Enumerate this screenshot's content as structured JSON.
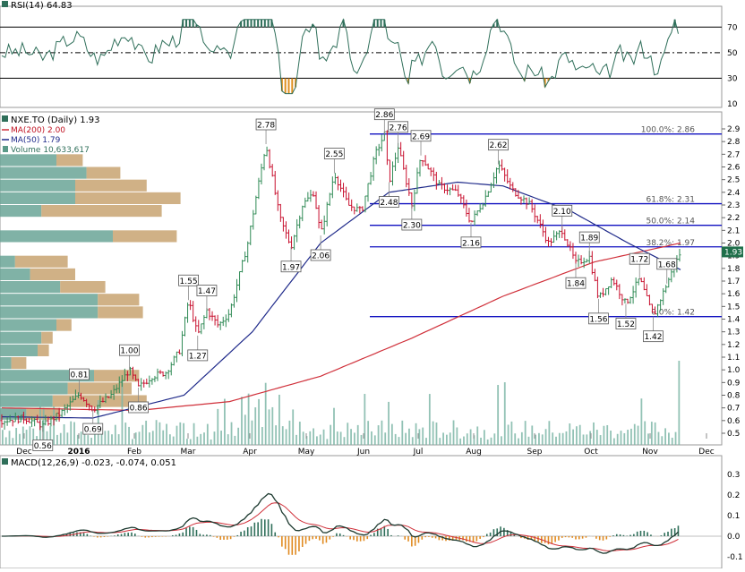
{
  "rsi_panel": {
    "legend": "RSI(14) 64.83",
    "ticks": [
      70,
      50,
      30,
      10
    ],
    "last_value": 64.83,
    "overbought": 70,
    "oversold": 30
  },
  "price_panel": {
    "legend_title": "NXE.TO (Daily) 1.93",
    "legend_ma200": "MA(200) 2.00",
    "legend_ma50": "MA(50) 1.79",
    "legend_volume": "Volume 10,633,617",
    "y_ticks": [
      "2.9",
      "2.8",
      "2.7",
      "2.6",
      "2.5",
      "2.4",
      "2.3",
      "2.2",
      "2.1",
      "2.0",
      "1.9",
      "1.8",
      "1.7",
      "1.6",
      "1.5",
      "1.4",
      "1.3",
      "1.2",
      "1.1",
      "1.0",
      "0.9",
      "0.8",
      "0.7",
      "0.6",
      "0.5"
    ],
    "x_ticks": [
      "Dec",
      "2016",
      "Feb",
      "Mar",
      "Apr",
      "May",
      "Jun",
      "Jul",
      "Aug",
      "Sep",
      "Oct",
      "Nov",
      "Dec"
    ],
    "fib_labels": [
      "100.0%: 2.86",
      "61.8%: 2.31",
      "50.0%: 2.14",
      "38.2%: 1.97",
      "0.0%: 1.42"
    ],
    "fib_levels": [
      2.86,
      2.31,
      2.14,
      1.97,
      1.42
    ],
    "colors": {
      "up": "#2f8a55",
      "down": "#c8102e",
      "ma200": "#d0303a",
      "ma50": "#1f2a8a",
      "fib": "#1010c0",
      "vp_up": "#6aa596",
      "vp_down": "#c8a371",
      "volume": "#7fb7a8"
    }
  },
  "macd_panel": {
    "legend": "MACD(12,26,9) -0.023, -0.074, 0.051",
    "ticks": [
      "0.3",
      "0.2",
      "0.1",
      "0.0",
      "-0.1"
    ]
  },
  "chart_data": {
    "type": "line",
    "title": "NXE.TO (Daily)",
    "last_close": 1.93,
    "ma200_last": 2.0,
    "ma50_last": 1.79,
    "volume_last": 10633617,
    "ylim": [
      0.45,
      2.95
    ],
    "price_path": [
      {
        "t": 0,
        "v": 0.6
      },
      {
        "t": 10,
        "v": 0.62
      },
      {
        "t": 18,
        "v": 0.56
      },
      {
        "t": 26,
        "v": 0.66
      },
      {
        "t": 34,
        "v": 0.81
      },
      {
        "t": 40,
        "v": 0.69
      },
      {
        "t": 48,
        "v": 0.8
      },
      {
        "t": 56,
        "v": 1.0
      },
      {
        "t": 60,
        "v": 0.86
      },
      {
        "t": 66,
        "v": 0.95
      },
      {
        "t": 72,
        "v": 0.98
      },
      {
        "t": 78,
        "v": 1.15
      },
      {
        "t": 82,
        "v": 1.55
      },
      {
        "t": 86,
        "v": 1.27
      },
      {
        "t": 90,
        "v": 1.47
      },
      {
        "t": 95,
        "v": 1.35
      },
      {
        "t": 100,
        "v": 1.45
      },
      {
        "t": 108,
        "v": 2.0
      },
      {
        "t": 112,
        "v": 2.4
      },
      {
        "t": 116,
        "v": 2.78
      },
      {
        "t": 122,
        "v": 2.2
      },
      {
        "t": 127,
        "v": 1.97
      },
      {
        "t": 132,
        "v": 2.3
      },
      {
        "t": 137,
        "v": 2.4
      },
      {
        "t": 140,
        "v": 2.06
      },
      {
        "t": 146,
        "v": 2.55
      },
      {
        "t": 152,
        "v": 2.3
      },
      {
        "t": 158,
        "v": 2.25
      },
      {
        "t": 164,
        "v": 2.7
      },
      {
        "t": 168,
        "v": 2.86
      },
      {
        "t": 170,
        "v": 2.48
      },
      {
        "t": 174,
        "v": 2.76
      },
      {
        "t": 180,
        "v": 2.3
      },
      {
        "t": 184,
        "v": 2.69
      },
      {
        "t": 192,
        "v": 2.45
      },
      {
        "t": 200,
        "v": 2.4
      },
      {
        "t": 206,
        "v": 2.16
      },
      {
        "t": 212,
        "v": 2.35
      },
      {
        "t": 218,
        "v": 2.62
      },
      {
        "t": 224,
        "v": 2.42
      },
      {
        "t": 232,
        "v": 2.3
      },
      {
        "t": 240,
        "v": 2.0
      },
      {
        "t": 246,
        "v": 2.1
      },
      {
        "t": 252,
        "v": 1.84
      },
      {
        "t": 258,
        "v": 1.89
      },
      {
        "t": 262,
        "v": 1.56
      },
      {
        "t": 268,
        "v": 1.72
      },
      {
        "t": 274,
        "v": 1.52
      },
      {
        "t": 280,
        "v": 1.72
      },
      {
        "t": 286,
        "v": 1.42
      },
      {
        "t": 292,
        "v": 1.68
      },
      {
        "t": 298,
        "v": 1.93
      }
    ],
    "ma200": [
      {
        "t": 0,
        "v": 0.7
      },
      {
        "t": 60,
        "v": 0.68
      },
      {
        "t": 100,
        "v": 0.75
      },
      {
        "t": 140,
        "v": 0.95
      },
      {
        "t": 180,
        "v": 1.25
      },
      {
        "t": 220,
        "v": 1.58
      },
      {
        "t": 260,
        "v": 1.85
      },
      {
        "t": 298,
        "v": 2.0
      }
    ],
    "ma50": [
      {
        "t": 0,
        "v": 0.63
      },
      {
        "t": 40,
        "v": 0.62
      },
      {
        "t": 80,
        "v": 0.8
      },
      {
        "t": 110,
        "v": 1.3
      },
      {
        "t": 140,
        "v": 2.0
      },
      {
        "t": 170,
        "v": 2.4
      },
      {
        "t": 200,
        "v": 2.48
      },
      {
        "t": 220,
        "v": 2.45
      },
      {
        "t": 250,
        "v": 2.25
      },
      {
        "t": 275,
        "v": 2.0
      },
      {
        "t": 298,
        "v": 1.79
      }
    ],
    "annotations": [
      {
        "text": "0.56",
        "t": 18,
        "v": 0.56,
        "pos": "below"
      },
      {
        "text": "0.81",
        "t": 34,
        "v": 0.81,
        "pos": "above"
      },
      {
        "text": "0.69",
        "t": 40,
        "v": 0.69,
        "pos": "below"
      },
      {
        "text": "1.00",
        "t": 56,
        "v": 1.0,
        "pos": "above"
      },
      {
        "text": "0.86",
        "t": 60,
        "v": 0.86,
        "pos": "below"
      },
      {
        "text": "1.55",
        "t": 82,
        "v": 1.55,
        "pos": "above"
      },
      {
        "text": "1.27",
        "t": 86,
        "v": 1.27,
        "pos": "below"
      },
      {
        "text": "1.47",
        "t": 90,
        "v": 1.47,
        "pos": "above"
      },
      {
        "text": "2.78",
        "t": 116,
        "v": 2.78,
        "pos": "above"
      },
      {
        "text": "1.97",
        "t": 127,
        "v": 1.97,
        "pos": "below"
      },
      {
        "text": "2.06",
        "t": 140,
        "v": 2.06,
        "pos": "below"
      },
      {
        "text": "2.55",
        "t": 146,
        "v": 2.55,
        "pos": "above"
      },
      {
        "text": "2.86",
        "t": 168,
        "v": 2.86,
        "pos": "above"
      },
      {
        "text": "2.48",
        "t": 170,
        "v": 2.48,
        "pos": "below"
      },
      {
        "text": "2.76",
        "t": 174,
        "v": 2.76,
        "pos": "above"
      },
      {
        "text": "2.30",
        "t": 180,
        "v": 2.3,
        "pos": "below"
      },
      {
        "text": "2.69",
        "t": 184,
        "v": 2.69,
        "pos": "above"
      },
      {
        "text": "2.16",
        "t": 206,
        "v": 2.16,
        "pos": "below"
      },
      {
        "text": "2.62",
        "t": 218,
        "v": 2.62,
        "pos": "above"
      },
      {
        "text": "2.10",
        "t": 246,
        "v": 2.1,
        "pos": "above"
      },
      {
        "text": "1.84",
        "t": 252,
        "v": 1.84,
        "pos": "below"
      },
      {
        "text": "1.89",
        "t": 258,
        "v": 1.89,
        "pos": "above"
      },
      {
        "text": "1.56",
        "t": 262,
        "v": 1.56,
        "pos": "below"
      },
      {
        "text": "1.72",
        "t": 280,
        "v": 1.72,
        "pos": "above"
      },
      {
        "text": "1.52",
        "t": 274,
        "v": 1.52,
        "pos": "below"
      },
      {
        "text": "1.42",
        "t": 286,
        "v": 1.42,
        "pos": "below"
      },
      {
        "text": "1.68",
        "t": 292,
        "v": 1.68,
        "pos": "above"
      }
    ],
    "volume_profile": [
      {
        "price": 2.65,
        "up": 15,
        "down": 7
      },
      {
        "price": 2.55,
        "up": 23,
        "down": 9
      },
      {
        "price": 2.45,
        "up": 20,
        "down": 19
      },
      {
        "price": 2.35,
        "up": 20,
        "down": 28
      },
      {
        "price": 2.25,
        "up": 11,
        "down": 32
      },
      {
        "price": 2.05,
        "up": 30,
        "down": 17
      },
      {
        "price": 1.85,
        "up": 4,
        "down": 14
      },
      {
        "price": 1.75,
        "up": 8,
        "down": 12
      },
      {
        "price": 1.65,
        "up": 16,
        "down": 12
      },
      {
        "price": 1.55,
        "up": 26,
        "down": 11
      },
      {
        "price": 1.45,
        "up": 26,
        "down": 12
      },
      {
        "price": 1.35,
        "up": 15,
        "down": 4
      },
      {
        "price": 1.25,
        "up": 11,
        "down": 3
      },
      {
        "price": 1.15,
        "up": 10,
        "down": 3
      },
      {
        "price": 1.05,
        "up": 3,
        "down": 4
      },
      {
        "price": 0.95,
        "up": 25,
        "down": 12
      },
      {
        "price": 0.85,
        "up": 18,
        "down": 17
      },
      {
        "price": 0.75,
        "up": 14,
        "down": 25
      },
      {
        "price": 0.65,
        "up": 7,
        "down": 9
      }
    ]
  }
}
